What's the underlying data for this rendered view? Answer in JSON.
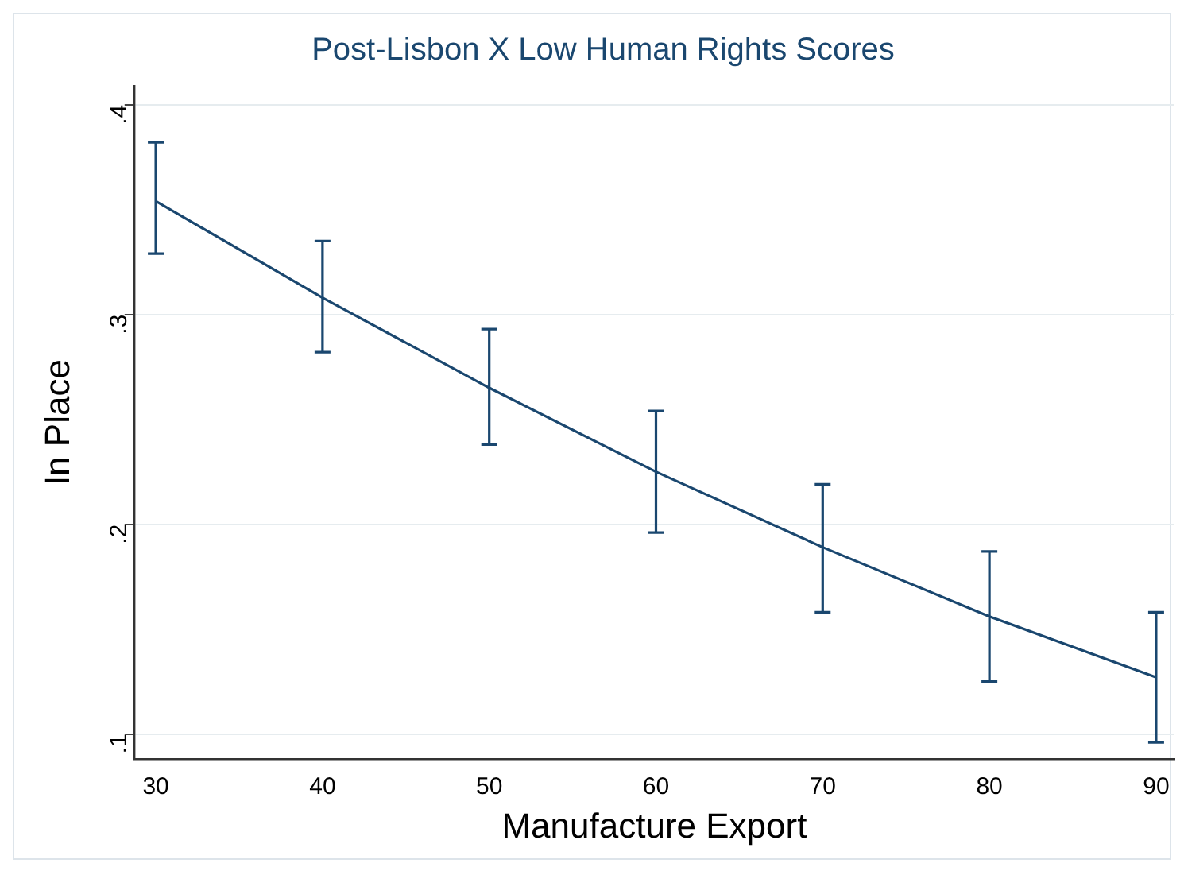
{
  "chart_data": {
    "type": "line",
    "title": "Post-Lisbon X Low Human Rights Scores",
    "xlabel": "Manufacture Export",
    "ylabel": "In Place",
    "x": [
      30,
      40,
      50,
      60,
      70,
      80,
      90
    ],
    "series": [
      {
        "color": "#1a476f",
        "values": [
          0.354,
          0.308,
          0.265,
          0.225,
          0.189,
          0.156,
          0.127
        ],
        "errors": [
          [
            0.329,
            0.382
          ],
          [
            0.282,
            0.335
          ],
          [
            0.238,
            0.293
          ],
          [
            0.196,
            0.254
          ],
          [
            0.158,
            0.219
          ],
          [
            0.125,
            0.187
          ],
          [
            0.096,
            0.158
          ]
        ]
      }
    ],
    "xlim": [
      28.7,
      91.1
    ],
    "ylim": [
      0.088,
      0.409
    ],
    "xticks": [
      30,
      40,
      50,
      60,
      70,
      80,
      90
    ],
    "yticks": [
      {
        "value": 0.1,
        "label": ".1"
      },
      {
        "value": 0.2,
        "label": ".2"
      },
      {
        "value": 0.3,
        "label": ".3"
      },
      {
        "value": 0.4,
        "label": ".4"
      }
    ],
    "grid": "y",
    "legend": false,
    "marker": "none",
    "line_style": "solid"
  }
}
